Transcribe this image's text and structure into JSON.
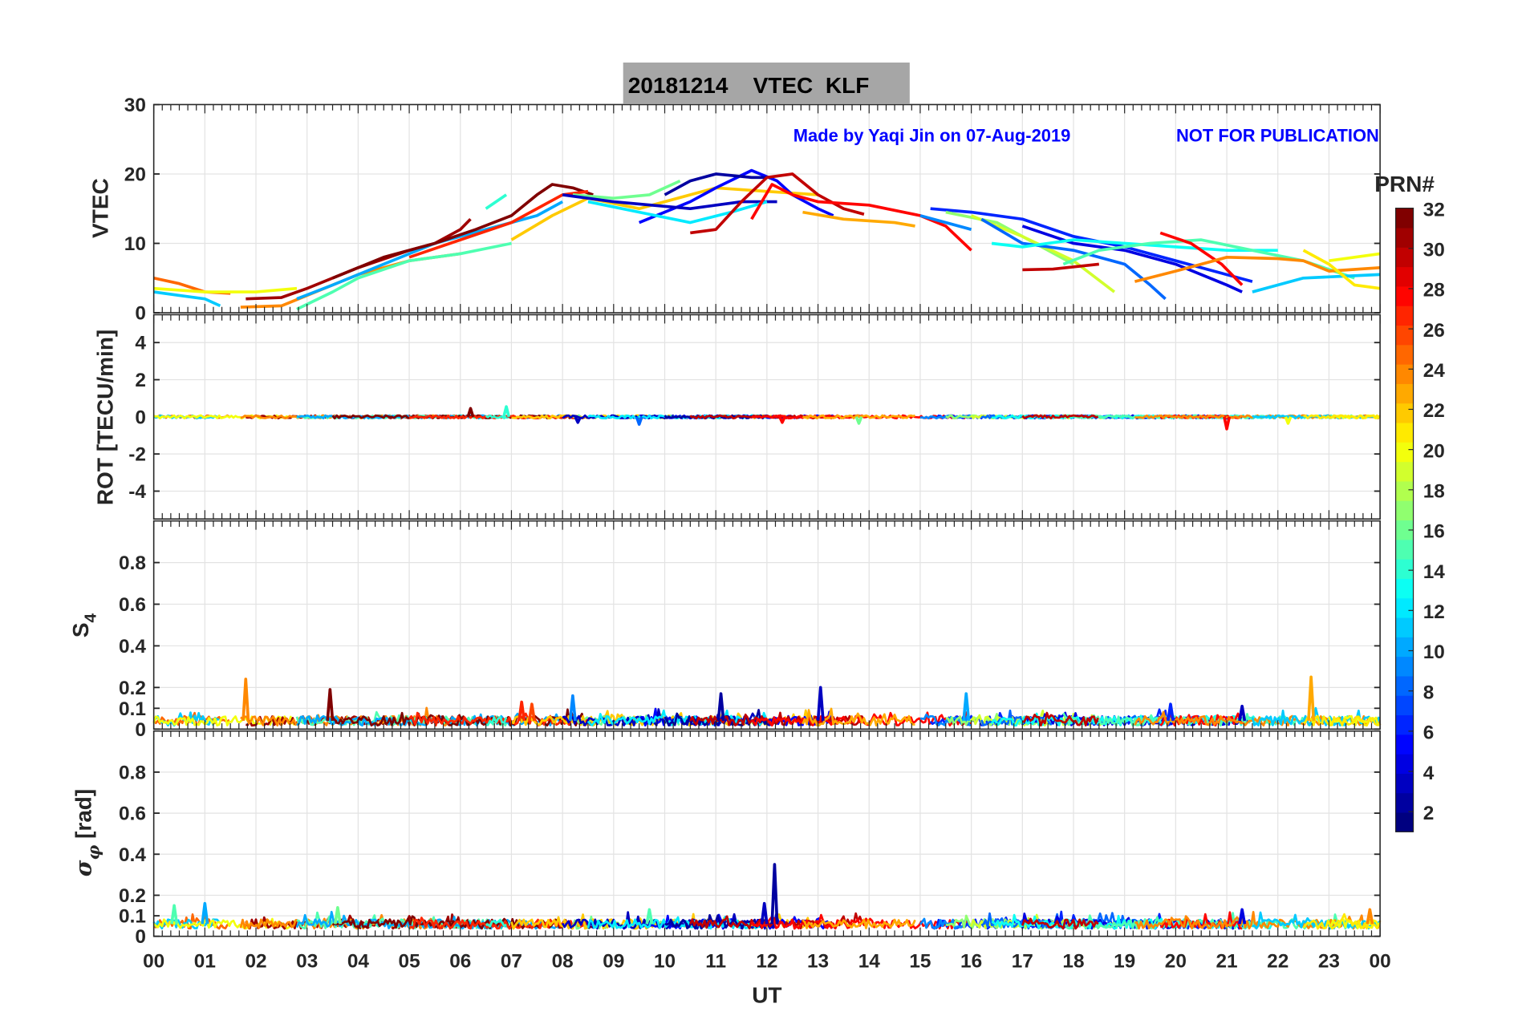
{
  "title": "20181214    VTEC  KLF",
  "credit_left": "Made by Yaqi Jin on 07-Aug-2019",
  "credit_right": "NOT FOR PUBLICATION",
  "x_axis": {
    "label": "UT",
    "range": [
      0,
      24
    ],
    "tick_labels": [
      "00",
      "01",
      "02",
      "03",
      "04",
      "05",
      "06",
      "07",
      "08",
      "09",
      "10",
      "11",
      "12",
      "13",
      "14",
      "15",
      "16",
      "17",
      "18",
      "19",
      "20",
      "21",
      "22",
      "23",
      "00"
    ]
  },
  "colorbar": {
    "title": "PRN#",
    "colormap": "jet",
    "range": [
      1,
      32
    ],
    "ticks": [
      2,
      4,
      6,
      8,
      10,
      12,
      14,
      16,
      18,
      20,
      22,
      24,
      26,
      28,
      30,
      32
    ],
    "tick_labels": [
      "2",
      "4",
      "6",
      "8",
      "10",
      "12",
      "14",
      "16",
      "18",
      "20",
      "22",
      "24",
      "26",
      "28",
      "30",
      "32"
    ]
  },
  "chart_data": [
    {
      "type": "line",
      "ylabel": "VTEC",
      "ylim": [
        0,
        30
      ],
      "yticks": [
        0,
        10,
        20,
        30
      ],
      "ytick_labels": [
        "0",
        "10",
        "20",
        "30"
      ],
      "grid": true,
      "series": [
        {
          "prn": 25,
          "points": [
            [
              0,
              5
            ],
            [
              0.5,
              4.2
            ],
            [
              1,
              3
            ],
            [
              1.5,
              2.8
            ]
          ]
        },
        {
          "prn": 11,
          "points": [
            [
              0,
              3
            ],
            [
              0.5,
              2.5
            ],
            [
              1,
              2
            ],
            [
              1.3,
              1
            ]
          ]
        },
        {
          "prn": 20,
          "points": [
            [
              0,
              3.5
            ],
            [
              1,
              3
            ],
            [
              2,
              3
            ],
            [
              2.8,
              3.5
            ]
          ]
        },
        {
          "prn": 31,
          "points": [
            [
              1.8,
              2
            ],
            [
              2.5,
              2.2
            ],
            [
              3,
              3.5
            ],
            [
              4,
              6.5
            ],
            [
              5,
              9
            ],
            [
              5.5,
              10
            ],
            [
              6,
              12
            ],
            [
              6.2,
              13.5
            ]
          ]
        },
        {
          "prn": 24,
          "points": [
            [
              1.7,
              0.8
            ],
            [
              2.5,
              1
            ],
            [
              3,
              2.5
            ],
            [
              4,
              5.5
            ],
            [
              5,
              7.5
            ],
            [
              6,
              8.5
            ]
          ]
        },
        {
          "prn": 15,
          "points": [
            [
              2.8,
              0.5
            ],
            [
              3.5,
              3
            ],
            [
              4,
              5
            ],
            [
              5,
              7.5
            ],
            [
              6,
              8.5
            ],
            [
              7,
              10
            ]
          ]
        },
        {
          "prn": 10,
          "points": [
            [
              2.8,
              2
            ],
            [
              3.5,
              4
            ],
            [
              4.5,
              7
            ],
            [
              5.5,
              10
            ],
            [
              6.5,
              12
            ],
            [
              7.5,
              14
            ],
            [
              8,
              16
            ]
          ]
        },
        {
          "prn": 32,
          "points": [
            [
              3.5,
              5
            ],
            [
              4.5,
              8
            ],
            [
              5.5,
              10
            ],
            [
              6.3,
              12
            ],
            [
              7,
              14
            ],
            [
              7.5,
              17
            ],
            [
              7.8,
              18.5
            ],
            [
              8.2,
              18
            ],
            [
              8.6,
              17
            ]
          ]
        },
        {
          "prn": 27,
          "points": [
            [
              5,
              8
            ],
            [
              6,
              10.5
            ],
            [
              7,
              13
            ],
            [
              7.5,
              15
            ],
            [
              8,
              17
            ],
            [
              8.5,
              17.5
            ]
          ]
        },
        {
          "prn": 14,
          "points": [
            [
              6.5,
              15
            ],
            [
              6.9,
              17
            ]
          ]
        },
        {
          "prn": 16,
          "points": [
            [
              8.2,
              17
            ],
            [
              9,
              16.5
            ],
            [
              9.7,
              17
            ],
            [
              10.3,
              19
            ]
          ]
        },
        {
          "prn": 22,
          "points": [
            [
              7,
              10.5
            ],
            [
              7.8,
              14
            ],
            [
              8.5,
              16.5
            ],
            [
              9.5,
              15
            ],
            [
              10,
              16
            ],
            [
              11,
              18
            ],
            [
              12,
              17.5
            ],
            [
              13,
              17
            ]
          ]
        },
        {
          "prn": 5,
          "points": [
            [
              9.5,
              13
            ],
            [
              10.5,
              16
            ],
            [
              11,
              18
            ],
            [
              11.7,
              20.5
            ],
            [
              12.2,
              19
            ],
            [
              12.5,
              17
            ],
            [
              13,
              15
            ],
            [
              13.3,
              14
            ]
          ]
        },
        {
          "prn": 3,
          "points": [
            [
              8,
              17
            ],
            [
              9,
              16
            ],
            [
              10.5,
              15
            ],
            [
              11.5,
              16
            ],
            [
              12.2,
              16
            ]
          ]
        },
        {
          "prn": 12,
          "points": [
            [
              8.5,
              16
            ],
            [
              9.5,
              14.5
            ],
            [
              10.5,
              13
            ],
            [
              11.3,
              14.5
            ],
            [
              12,
              16
            ]
          ]
        },
        {
          "prn": 2,
          "points": [
            [
              10,
              17
            ],
            [
              10.5,
              19
            ],
            [
              11,
              20
            ],
            [
              11.7,
              19.5
            ],
            [
              12,
              19.5
            ]
          ]
        },
        {
          "prn": 30,
          "points": [
            [
              10.5,
              11.5
            ],
            [
              11,
              12
            ],
            [
              11.5,
              16
            ],
            [
              12,
              19.5
            ],
            [
              12.5,
              20
            ],
            [
              13,
              17
            ],
            [
              13.5,
              15
            ],
            [
              13.9,
              14.2
            ]
          ]
        },
        {
          "prn": 28,
          "points": [
            [
              11.7,
              13.5
            ],
            [
              12.1,
              18.5
            ],
            [
              12.5,
              17
            ],
            [
              13,
              16
            ],
            [
              14,
              15.5
            ],
            [
              15,
              14
            ],
            [
              15.5,
              12.5
            ],
            [
              16,
              9
            ]
          ]
        },
        {
          "prn": 23,
          "points": [
            [
              12.7,
              14.5
            ],
            [
              13.5,
              13.5
            ],
            [
              14.5,
              13
            ],
            [
              14.9,
              12.5
            ]
          ]
        },
        {
          "prn": 6,
          "points": [
            [
              15.2,
              15
            ],
            [
              16,
              14.5
            ],
            [
              17,
              13.5
            ],
            [
              18,
              11
            ],
            [
              19,
              9.5
            ],
            [
              20,
              7.5
            ],
            [
              21.5,
              4.5
            ]
          ]
        },
        {
          "prn": 9,
          "points": [
            [
              15,
              14
            ],
            [
              16,
              12
            ]
          ]
        },
        {
          "prn": 17,
          "points": [
            [
              15.5,
              14.5
            ],
            [
              16.5,
              13
            ],
            [
              17.5,
              9
            ],
            [
              18,
              7
            ]
          ]
        },
        {
          "prn": 19,
          "points": [
            [
              16,
              14
            ],
            [
              17,
              11
            ],
            [
              18,
              7.5
            ],
            [
              18.8,
              3
            ]
          ]
        },
        {
          "prn": 8,
          "points": [
            [
              16.2,
              13.5
            ],
            [
              17,
              10
            ],
            [
              18,
              9
            ],
            [
              19,
              7
            ],
            [
              19.5,
              4
            ],
            [
              19.8,
              2
            ]
          ]
        },
        {
          "prn": 4,
          "points": [
            [
              17,
              12.5
            ],
            [
              18,
              10
            ],
            [
              19,
              9
            ],
            [
              20,
              7
            ],
            [
              21,
              4
            ],
            [
              21.3,
              3
            ]
          ]
        },
        {
          "prn": 13,
          "points": [
            [
              16.4,
              10
            ],
            [
              17,
              9.5
            ],
            [
              18,
              10.5
            ],
            [
              19,
              10
            ],
            [
              20,
              9.5
            ],
            [
              21,
              9
            ],
            [
              22,
              9
            ]
          ]
        },
        {
          "prn": 15,
          "points": [
            [
              17.8,
              7
            ],
            [
              18.5,
              9
            ],
            [
              19.5,
              10
            ],
            [
              20.5,
              10.5
            ],
            [
              21.5,
              9
            ],
            [
              22.5,
              7.5
            ],
            [
              23.5,
              5
            ]
          ]
        },
        {
          "prn": 30,
          "points": [
            [
              17,
              6.2
            ],
            [
              17.6,
              6.3
            ],
            [
              18.5,
              7
            ]
          ]
        },
        {
          "prn": 28,
          "points": [
            [
              19.7,
              11.5
            ],
            [
              20.3,
              10
            ],
            [
              20.9,
              7
            ],
            [
              21.3,
              4
            ]
          ]
        },
        {
          "prn": 24,
          "points": [
            [
              19.2,
              4.5
            ],
            [
              20,
              6
            ],
            [
              21,
              8
            ],
            [
              22,
              7.8
            ],
            [
              22.5,
              7.5
            ],
            [
              23,
              6
            ],
            [
              24,
              6.5
            ]
          ]
        },
        {
          "prn": 11,
          "points": [
            [
              21.5,
              3
            ],
            [
              22.5,
              5
            ],
            [
              24,
              5.5
            ]
          ]
        },
        {
          "prn": 20,
          "points": [
            [
              23,
              7.5
            ],
            [
              24,
              8.5
            ]
          ]
        },
        {
          "prn": 21,
          "points": [
            [
              22.5,
              9
            ],
            [
              23,
              7
            ],
            [
              23.5,
              4
            ],
            [
              24,
              3.5
            ]
          ]
        }
      ]
    },
    {
      "type": "line",
      "ylabel": "ROT [TECU/min]",
      "ylim": [
        -5.5,
        5.5
      ],
      "yticks": [
        -4,
        -2,
        0,
        2,
        4
      ],
      "ytick_labels": [
        "-4",
        "-2",
        "0",
        "2",
        "4"
      ],
      "grid": true,
      "baseline": 0,
      "noise": 0.08,
      "spikes": [
        [
          6.2,
          0.45,
          32
        ],
        [
          6.9,
          0.55,
          14
        ],
        [
          8.3,
          -0.3,
          3
        ],
        [
          9.5,
          -0.4,
          8
        ],
        [
          12.3,
          -0.3,
          28
        ],
        [
          13.8,
          -0.35,
          16
        ],
        [
          21,
          -0.65,
          28
        ],
        [
          22.2,
          -0.35,
          20
        ]
      ]
    },
    {
      "type": "line",
      "ylabel": "S4",
      "ylim": [
        0,
        1
      ],
      "yticks": [
        0,
        0.1,
        0.2,
        0.4,
        0.6,
        0.8
      ],
      "ytick_labels": [
        "0",
        "0.1",
        "0.2",
        "0.4",
        "0.6",
        "0.8"
      ],
      "grid": true,
      "baseline": 0.04,
      "noise": 0.015,
      "spikes": [
        [
          1.8,
          0.24,
          24
        ],
        [
          3.45,
          0.19,
          32
        ],
        [
          7.2,
          0.13,
          27
        ],
        [
          7.4,
          0.12,
          26
        ],
        [
          8.2,
          0.16,
          9
        ],
        [
          11.1,
          0.17,
          2
        ],
        [
          13.05,
          0.2,
          3
        ],
        [
          15.9,
          0.17,
          10
        ],
        [
          19.9,
          0.12,
          6
        ],
        [
          21.3,
          0.11,
          3
        ],
        [
          22.65,
          0.25,
          23
        ]
      ]
    },
    {
      "type": "line",
      "ylabel": "σφ [rad]",
      "ylim": [
        0,
        1
      ],
      "yticks": [
        0,
        0.1,
        0.2,
        0.4,
        0.6,
        0.8
      ],
      "ytick_labels": [
        "0",
        "0.1",
        "0.2",
        "0.4",
        "0.6",
        "0.8"
      ],
      "grid": true,
      "baseline": 0.06,
      "noise": 0.015,
      "spikes": [
        [
          0.4,
          0.15,
          15
        ],
        [
          1.0,
          0.16,
          10
        ],
        [
          3.6,
          0.14,
          16
        ],
        [
          9.7,
          0.13,
          15
        ],
        [
          11.95,
          0.16,
          3
        ],
        [
          12.15,
          0.35,
          2
        ],
        [
          21.3,
          0.13,
          4
        ],
        [
          23.8,
          0.13,
          24
        ]
      ]
    }
  ]
}
